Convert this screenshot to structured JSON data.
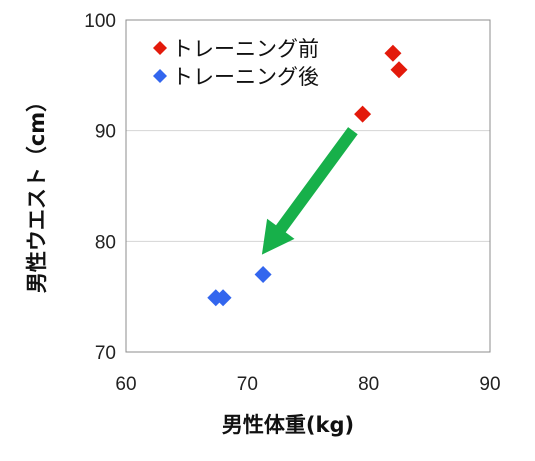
{
  "chart_data": {
    "type": "scatter",
    "xlabel": "男性体重(kg)",
    "ylabel": "男性ウエスト（cm）",
    "xlim": [
      60,
      90
    ],
    "ylim": [
      70,
      100
    ],
    "x_ticks": [
      "60",
      "70",
      "80",
      "90"
    ],
    "y_ticks": [
      "70",
      "80",
      "90",
      "100"
    ],
    "grid": "horizontal",
    "legend_position": "top-left",
    "series": [
      {
        "name": "トレーニング前",
        "color": "#e31a0b",
        "marker": "diamond",
        "points": [
          {
            "x": 79.5,
            "y": 91.5
          },
          {
            "x": 82.0,
            "y": 97.0
          },
          {
            "x": 82.5,
            "y": 95.5
          }
        ]
      },
      {
        "name": "トレーニング後",
        "color": "#3366ee",
        "marker": "diamond",
        "points": [
          {
            "x": 67.4,
            "y": 74.9
          },
          {
            "x": 68.0,
            "y": 74.9
          },
          {
            "x": 71.3,
            "y": 77.0
          }
        ]
      }
    ],
    "annotations": [
      {
        "type": "arrow",
        "color": "#17b04a",
        "from": {
          "x": 78.7,
          "y": 90.0
        },
        "to": {
          "x": 71.2,
          "y": 78.8
        }
      }
    ]
  }
}
